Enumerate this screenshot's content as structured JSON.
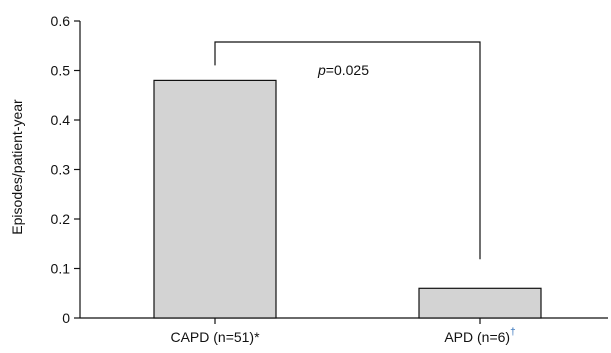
{
  "chart_data": {
    "type": "bar",
    "ylabel": "Episodes/patient-year",
    "ylim": [
      0,
      0.6
    ],
    "yticks": [
      "0",
      "0.1",
      "0.2",
      "0.3",
      "0.4",
      "0.5",
      "0.6"
    ],
    "categories": [
      "CAPD (n=51)*",
      "APD (n=6)"
    ],
    "category_marks": [
      "",
      "†"
    ],
    "values": [
      0.48,
      0.06
    ],
    "bar_color": "#d3d3d3",
    "significance": {
      "p_symbol": "p",
      "p_value": "=0.025",
      "between": [
        0,
        1
      ]
    },
    "grid": false
  }
}
